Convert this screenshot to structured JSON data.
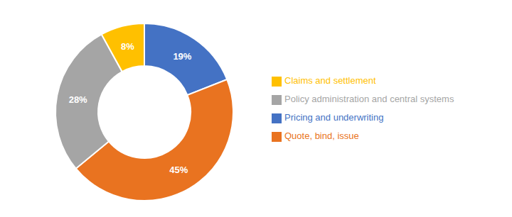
{
  "chart_data": {
    "type": "donut",
    "categories": [
      "Pricing and underwriting",
      "Quote, bind, issue",
      "Policy administration and central systems",
      "Claims and settlement"
    ],
    "values": [
      19,
      45,
      28,
      8
    ],
    "value_labels": [
      "19%",
      "45%",
      "28%",
      "8%"
    ],
    "data_labels": true,
    "colors": [
      "#4472C4",
      "#E97320",
      "#A5A5A5",
      "#FFC000"
    ],
    "legend": "right"
  }
}
